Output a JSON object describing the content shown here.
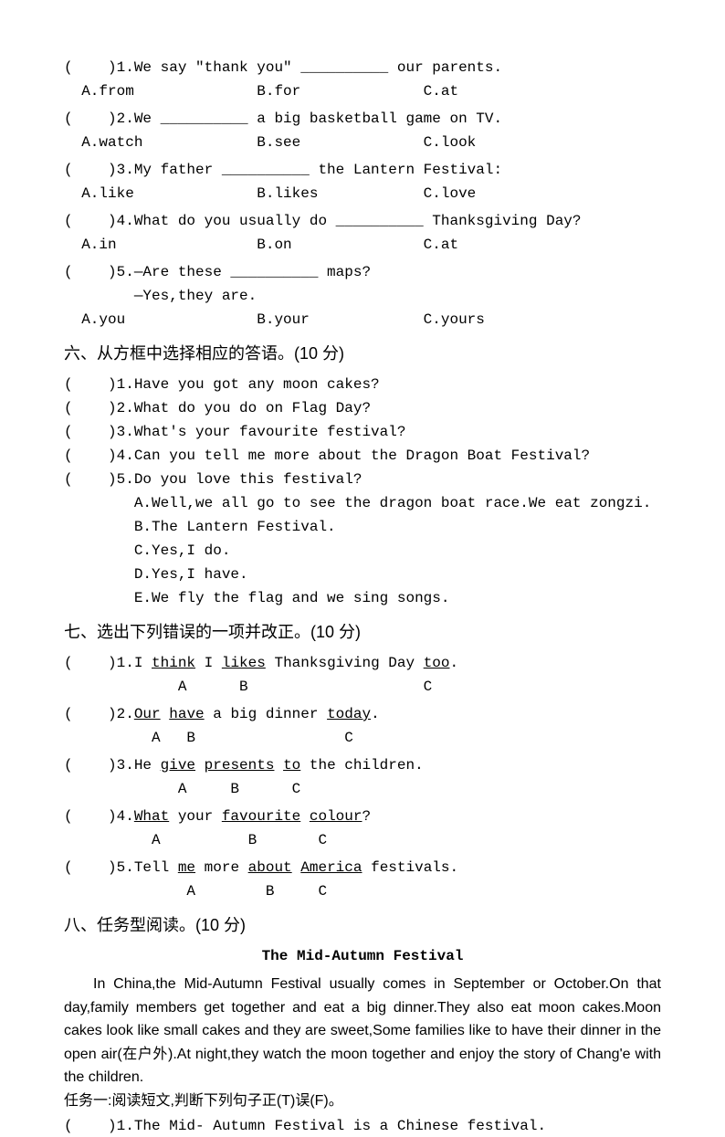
{
  "section5": {
    "q1": {
      "line": "(    )1.We say \"thank you\" __________ our parents.",
      "opts": "  A.from              B.for              C.at"
    },
    "q2": {
      "line": "(    )2.We __________ a big basketball game on TV.",
      "opts": "  A.watch             B.see              C.look"
    },
    "q3": {
      "line": "(    )3.My father __________ the Lantern Festival:",
      "opts": "  A.like              B.likes            C.love"
    },
    "q4": {
      "line": "(    )4.What do you usually do __________ Thanksgiving Day?",
      "opts": "  A.in                B.on               C.at"
    },
    "q5": {
      "line1": "(    )5.—Are these __________ maps?",
      "line2": "        —Yes,they are.",
      "opts": "  A.you               B.your             C.yours"
    }
  },
  "section6": {
    "heading": "六、从方框中选择相应的答语。(10 分)",
    "q1": "(    )1.Have you got any moon cakes?",
    "q2": "(    )2.What do you do on Flag Day?",
    "q3": "(    )3.What's your favourite festival?",
    "q4": "(    )4.Can you tell me more about the Dragon Boat Festival?",
    "q5": "(    )5.Do you love this festival?",
    "a": "        A.Well,we all go to see the dragon boat race.We eat zongzi.",
    "b": "        B.The Lantern Festival.",
    "c": "        C.Yes,I do.",
    "d": "        D.Yes,I have.",
    "e": "        E.We fly the flag and we sing songs."
  },
  "section7": {
    "heading": "七、选出下列错误的一项并改正。(10 分)"
  },
  "section8": {
    "heading": "八、任务型阅读。(10 分)",
    "title": "The Mid-Autumn Festival",
    "p1": "In China,the Mid-Autumn Festival usually comes in September or October.On that day,family members get together and eat a big dinner.They also eat moon cakes.Moon cakes look like small cakes and they are sweet,Some families like to have their dinner in the open air(在户外).At night,they watch the moon together and enjoy the story of Chang'e with the children.",
    "task1": "任务一:阅读短文,判断下列句子正(T)误(F)。",
    "t1": "(    )1.The Mid- Autumn Festival is a Chinese festival."
  }
}
